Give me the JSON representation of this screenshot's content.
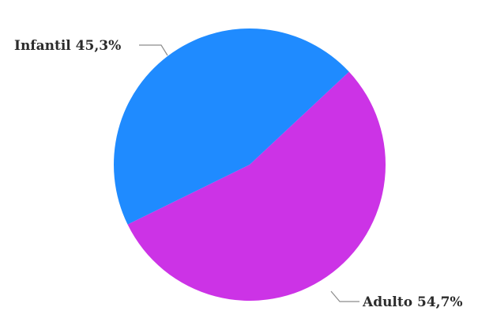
{
  "chart_data": {
    "type": "pie",
    "title": "",
    "slices": [
      {
        "name": "Infantil",
        "value": 45.3,
        "label": "Infantil 45,3%",
        "color": "#1f8bff"
      },
      {
        "name": "Adulto",
        "value": 54.7,
        "label": "Adulto 54,7%",
        "color": "#cc33e6"
      }
    ],
    "legend": "none",
    "data_labels": "outside with leader lines"
  }
}
